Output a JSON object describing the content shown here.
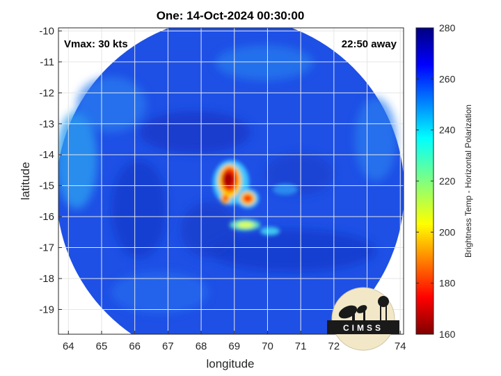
{
  "title": "One: 14-Oct-2024 00:30:00",
  "annotations": {
    "vmax": "Vmax: 30 kts",
    "time_away": "22:50 away"
  },
  "axes": {
    "xlabel": "longitude",
    "ylabel": "latitude",
    "x_ticks": [
      "64",
      "65",
      "66",
      "67",
      "68",
      "69",
      "70",
      "71",
      "72",
      "73",
      "74"
    ],
    "y_ticks": [
      "-10",
      "-11",
      "-12",
      "-13",
      "-14",
      "-15",
      "-16",
      "-17",
      "-18",
      "-19"
    ]
  },
  "colorbar": {
    "label": "Brightness Temp - Horizontal Polarization",
    "ticks": [
      "280",
      "260",
      "240",
      "220",
      "200",
      "180",
      "160"
    ],
    "range": [
      160,
      280
    ],
    "colormap": "jet"
  },
  "logo": {
    "text": "CIMSS"
  },
  "colors": {
    "swath_bg": "#1f4fe0",
    "warm_core": "#cc1a00",
    "frame": "#262626"
  },
  "chart_data": {
    "type": "heatmap",
    "title": "One: 14-Oct-2024 00:30:00",
    "xlabel": "longitude",
    "ylabel": "latitude",
    "xlim": [
      63.7,
      74.1
    ],
    "ylim": [
      -19.8,
      -9.9
    ],
    "value_range": [
      160,
      280
    ],
    "colorbar_label": "Brightness Temp - Horizontal Polarization",
    "features": [
      {
        "name": "core",
        "lon": 68.75,
        "lat": -14.85,
        "value": 168
      },
      {
        "name": "south-east cell",
        "lon": 69.45,
        "lat": -15.35,
        "value": 178
      },
      {
        "name": "south cell",
        "lon": 68.7,
        "lat": -15.35,
        "value": 182
      },
      {
        "name": "rainband",
        "lon": 69.5,
        "lat": -16.25,
        "value": 222
      },
      {
        "name": "rainband east",
        "lon": 70.2,
        "lat": -16.45,
        "value": 232
      },
      {
        "name": "background",
        "value": 262
      }
    ]
  }
}
